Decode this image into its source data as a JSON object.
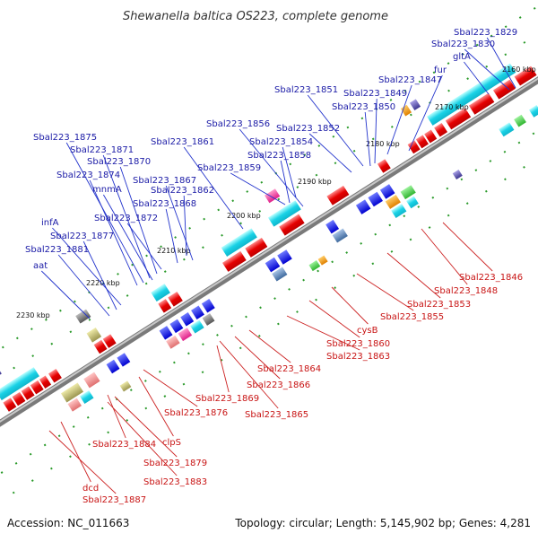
{
  "title": "Shewanella baltica OS223, complete genome",
  "footer": {
    "accession": "Accession: NC_011663",
    "topology": "Topology: circular; Length: 5,145,902 bp; Genes: 4,281"
  },
  "ticks": [
    {
      "label": "2160 kbp"
    },
    {
      "label": "2170 kbp"
    },
    {
      "label": "2180 kbp"
    },
    {
      "label": "2190 kbp"
    },
    {
      "label": "2200 kbp"
    },
    {
      "label": "2210 kbp"
    },
    {
      "label": "2220 kbp"
    },
    {
      "label": "2230 kbp"
    }
  ],
  "top_labels": [
    {
      "text": "Sbal223_1829"
    },
    {
      "text": "Sbal223_1830"
    },
    {
      "text": "gltA"
    },
    {
      "text": "fur"
    },
    {
      "text": "Sbal223_1847"
    },
    {
      "text": "Sbal223_1851"
    },
    {
      "text": "Sbal223_1849"
    },
    {
      "text": "Sbal223_1850"
    },
    {
      "text": "Sbal223_1856"
    },
    {
      "text": "Sbal223_1852"
    },
    {
      "text": "Sbal223_1854"
    },
    {
      "text": "Sbal223_1858"
    },
    {
      "text": "Sbal223_1861"
    },
    {
      "text": "Sbal223_1859"
    },
    {
      "text": "Sbal223_1875"
    },
    {
      "text": "Sbal223_1871"
    },
    {
      "text": "Sbal223_1870"
    },
    {
      "text": "Sbal223_1874"
    },
    {
      "text": "Sbal223_1867"
    },
    {
      "text": "mnmA"
    },
    {
      "text": "Sbal223_1862"
    },
    {
      "text": "Sbal223_1868"
    },
    {
      "text": "Sbal223_1872"
    },
    {
      "text": "infA"
    },
    {
      "text": "Sbal223_1877"
    },
    {
      "text": "Sbal223_1881"
    },
    {
      "text": "aat"
    }
  ],
  "bottom_labels": [
    {
      "text": "Sbal223_1846"
    },
    {
      "text": "Sbal223_1848"
    },
    {
      "text": "Sbal223_1853"
    },
    {
      "text": "Sbal223_1855"
    },
    {
      "text": "cysB"
    },
    {
      "text": "Sbal223_1860"
    },
    {
      "text": "Sbal223_1863"
    },
    {
      "text": "Sbal223_1864"
    },
    {
      "text": "Sbal223_1866"
    },
    {
      "text": "Sbal223_1869"
    },
    {
      "text": "Sbal223_1865"
    },
    {
      "text": "Sbal223_1876"
    },
    {
      "text": "clpS"
    },
    {
      "text": "Sbal223_1884"
    },
    {
      "text": "Sbal223_1879"
    },
    {
      "text": "Sbal223_1883"
    },
    {
      "text": "dcd"
    },
    {
      "text": "Sbal223_1887"
    }
  ]
}
